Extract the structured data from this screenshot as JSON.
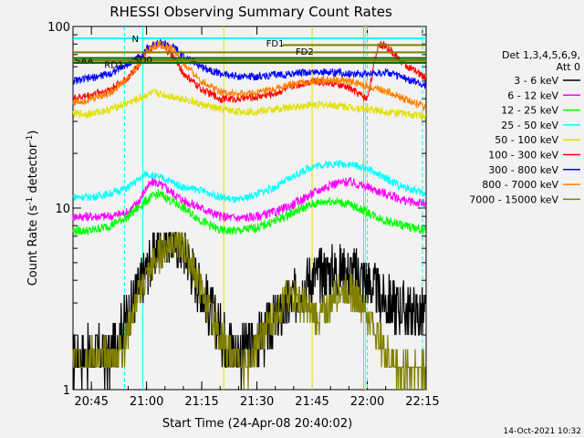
{
  "chart_data": {
    "type": "line",
    "title": "RHESSI Observing Summary Count Rates",
    "xlabel": "Start Time (24-Apr-08 20:40:02)",
    "ylabel": "Count Rate (s",
    "ylabel_sup": "-1",
    "ylabel_tail": " detector",
    "ylabel_sup2": "-1",
    "ylabel_end": ")",
    "yscale": "log",
    "ylim": [
      1,
      100
    ],
    "xlim_minutes": [
      0,
      96
    ],
    "x_ticks": [
      {
        "label": "20:45",
        "minute": 5
      },
      {
        "label": "21:00",
        "minute": 20
      },
      {
        "label": "21:15",
        "minute": 35
      },
      {
        "label": "21:30",
        "minute": 50
      },
      {
        "label": "21:45",
        "minute": 65
      },
      {
        "label": "22:00",
        "minute": 80
      },
      {
        "label": "22:15",
        "minute": 95
      }
    ],
    "y_ticks": [
      {
        "label": "1",
        "value": 1
      },
      {
        "label": "10",
        "value": 10
      },
      {
        "label": "100",
        "value": 100
      }
    ],
    "legend_header": [
      "Det 1,3,4,5,6,9,",
      "Att 0"
    ],
    "legend_position": "right",
    "series": [
      {
        "name": "3 - 6 keV",
        "color": "#000000",
        "x": [
          0,
          5,
          10,
          14,
          17,
          20,
          23,
          25,
          30,
          35,
          40,
          45,
          50,
          55,
          60,
          65,
          70,
          75,
          78,
          80,
          83,
          86,
          90,
          94,
          96
        ],
        "y": [
          1.5,
          1.6,
          1.5,
          2.4,
          3.3,
          4.5,
          6.0,
          7.0,
          6.0,
          3.5,
          2.1,
          1.6,
          1.8,
          2.4,
          3.2,
          4.2,
          4.5,
          4.5,
          4.3,
          4.0,
          3.3,
          3.0,
          2.8,
          2.6,
          2.5
        ]
      },
      {
        "name": "6 - 12 keV",
        "color": "#ff00ff",
        "x": [
          0,
          5,
          10,
          15,
          18,
          20,
          22,
          25,
          30,
          35,
          40,
          45,
          50,
          55,
          60,
          65,
          70,
          75,
          80,
          85,
          90,
          96
        ],
        "y": [
          9,
          9,
          9,
          9.5,
          11,
          13,
          14,
          13,
          11,
          10,
          9,
          8.8,
          9,
          9.5,
          10.5,
          12,
          13.5,
          14,
          13,
          12,
          11,
          10.5
        ]
      },
      {
        "name": "12 - 25 keV",
        "color": "#00ff00",
        "x": [
          0,
          5,
          10,
          15,
          20,
          23,
          25,
          30,
          35,
          40,
          45,
          50,
          55,
          60,
          65,
          70,
          75,
          80,
          85,
          90,
          96
        ],
        "y": [
          7.5,
          7.5,
          8,
          9,
          11,
          12,
          11.5,
          10,
          8.5,
          7.5,
          7.5,
          7.8,
          8.5,
          9.5,
          10.5,
          11,
          10.5,
          9.5,
          8.5,
          8,
          7.5
        ]
      },
      {
        "name": "25 - 50 keV",
        "color": "#00ffff",
        "x": [
          0,
          5,
          10,
          15,
          18,
          20,
          22,
          25,
          30,
          35,
          40,
          45,
          50,
          55,
          60,
          65,
          70,
          75,
          80,
          85,
          90,
          96
        ],
        "y": [
          11.5,
          11.5,
          12,
          13,
          14.5,
          15.5,
          15,
          14.5,
          13,
          12.5,
          11.5,
          11,
          12,
          13,
          15,
          17,
          17.5,
          17.5,
          16.5,
          14.5,
          13,
          12
        ]
      },
      {
        "name": "50 - 100 keV",
        "color": "#e0e000",
        "x": [
          0,
          5,
          10,
          15,
          18,
          20,
          22,
          25,
          30,
          35,
          40,
          45,
          50,
          55,
          60,
          65,
          70,
          75,
          80,
          85,
          90,
          96
        ],
        "y": [
          33,
          33,
          35,
          38,
          40,
          42,
          43,
          42,
          40,
          37,
          35,
          34,
          34,
          35,
          36,
          37,
          37,
          36,
          35,
          34,
          33,
          32
        ]
      },
      {
        "name": "100 - 300 keV",
        "color": "#ff0000",
        "x": [
          0,
          5,
          10,
          15,
          18,
          20,
          23,
          25,
          28,
          30,
          35,
          40,
          45,
          50,
          55,
          60,
          63,
          65,
          70,
          75,
          80,
          83,
          85,
          90,
          96
        ],
        "y": [
          40,
          42,
          45,
          52,
          62,
          74,
          80,
          76,
          65,
          55,
          45,
          40,
          40,
          41,
          43,
          47,
          49,
          50,
          49,
          46,
          40,
          80,
          78,
          62,
          52
        ]
      },
      {
        "name": "300 - 800 keV",
        "color": "#0000ff",
        "x": [
          0,
          5,
          10,
          15,
          18,
          20,
          23,
          25,
          28,
          30,
          35,
          40,
          45,
          50,
          55,
          60,
          65,
          70,
          75,
          80,
          85,
          90,
          96
        ],
        "y": [
          50,
          52,
          55,
          62,
          68,
          75,
          82,
          80,
          75,
          68,
          60,
          55,
          53,
          53,
          54,
          55,
          56,
          56,
          55,
          55,
          56,
          52,
          47
        ]
      },
      {
        "name": "800 - 7000 keV",
        "color": "#ff8000",
        "x": [
          0,
          5,
          10,
          15,
          18,
          20,
          23,
          25,
          28,
          30,
          35,
          40,
          45,
          50,
          55,
          60,
          65,
          70,
          75,
          80,
          85,
          90,
          96
        ],
        "y": [
          38,
          40,
          43,
          52,
          62,
          72,
          80,
          78,
          72,
          62,
          50,
          44,
          42,
          43,
          45,
          48,
          50,
          51,
          50,
          47,
          44,
          40,
          36
        ]
      },
      {
        "name": "7000 - 15000 keV",
        "color": "#808000",
        "x": [
          0,
          4,
          8,
          12,
          14,
          16,
          18,
          20,
          22,
          25,
          28,
          30,
          32,
          35,
          38,
          42,
          45,
          48,
          50,
          55,
          58,
          60,
          62,
          65,
          68,
          70,
          72,
          75,
          78,
          80,
          83,
          86,
          88,
          90,
          93,
          96
        ],
        "y": [
          1.5,
          1.5,
          1.5,
          1.5,
          1.8,
          2.5,
          3.4,
          4.2,
          5.0,
          6.0,
          6.8,
          6.0,
          5.0,
          3.5,
          2.4,
          1.6,
          1.4,
          1.4,
          1.8,
          2.6,
          3.2,
          3.4,
          3.0,
          2.6,
          2.6,
          3.0,
          3.5,
          3.6,
          3.2,
          2.6,
          2.0,
          1.5,
          1.4,
          1.3,
          1.3,
          1.3
        ]
      }
    ],
    "annotations": [
      {
        "text": "N",
        "color": "#00c8c8"
      },
      {
        "text": "FD1",
        "color": "#808000"
      },
      {
        "text": "FD2",
        "color": "#808000"
      },
      {
        "text": "SAA",
        "color": "#808000"
      },
      {
        "text": "SD0",
        "color": "#006600"
      },
      {
        "text": "RD1",
        "color": "#006600"
      }
    ],
    "footer_date": "14-Oct-2021 10:32"
  }
}
